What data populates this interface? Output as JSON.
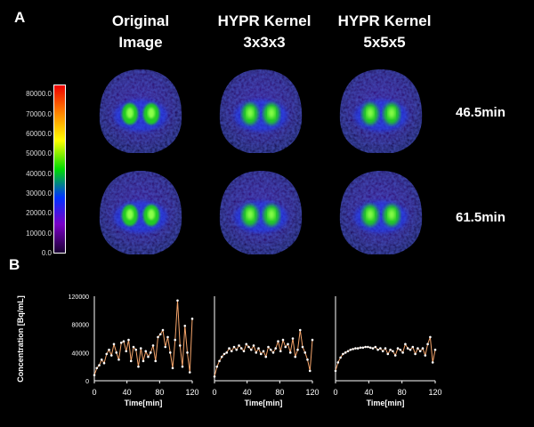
{
  "panel_labels": {
    "a": "A",
    "b": "B"
  },
  "columns": [
    {
      "line1": "Original",
      "line2": "Image"
    },
    {
      "line1": "HYPR Kernel",
      "line2": "3x3x3"
    },
    {
      "line1": "HYPR Kernel",
      "line2": "5x5x5"
    }
  ],
  "rows": [
    "46.5min",
    "61.5min"
  ],
  "colorbar": {
    "ticks": [
      "80000.0",
      "70000.0",
      "60000.0",
      "50000.0",
      "40000.0",
      "30000.0",
      "20000.0",
      "10000.0",
      "0.0"
    ],
    "max": 85000,
    "colors": [
      "#f00000",
      "#ff8800",
      "#ffff00",
      "#00dd00",
      "#0033ff",
      "#7a00c8",
      "#1a0033"
    ]
  },
  "chart_data": [
    {
      "type": "line",
      "ylabel": "Concentration [Bq/mL]",
      "xlabel": "Time[min]",
      "xticks": [
        "0",
        "40",
        "80",
        "120"
      ],
      "yticks": [
        "0",
        "40000",
        "80000",
        "120000"
      ],
      "xlim": [
        0,
        120
      ],
      "ylim": [
        0,
        120000
      ],
      "x": [
        0,
        3,
        6,
        9,
        12,
        15,
        18,
        21,
        24,
        27,
        30,
        33,
        36,
        39,
        42,
        45,
        48,
        51,
        54,
        57,
        60,
        63,
        66,
        69,
        72,
        75,
        78,
        81,
        84,
        87,
        90,
        93,
        96,
        99,
        102,
        105,
        108,
        111,
        114,
        117,
        120
      ],
      "values": [
        8000,
        18000,
        22000,
        30000,
        25000,
        38000,
        44000,
        36000,
        52000,
        40000,
        30000,
        54000,
        56000,
        42000,
        58000,
        28000,
        48000,
        44000,
        20000,
        46000,
        28000,
        42000,
        34000,
        40000,
        50000,
        28000,
        62000,
        66000,
        72000,
        48000,
        62000,
        40000,
        18000,
        58000,
        114000,
        50000,
        20000,
        78000,
        40000,
        12000,
        88000
      ],
      "color": "#f5a46a"
    },
    {
      "type": "line",
      "xlabel": "Time[min]",
      "xticks": [
        "0",
        "40",
        "80",
        "120"
      ],
      "xlim": [
        0,
        120
      ],
      "ylim": [
        0,
        120000
      ],
      "x": [
        0,
        3,
        6,
        9,
        12,
        15,
        18,
        21,
        24,
        27,
        30,
        33,
        36,
        39,
        42,
        45,
        48,
        51,
        54,
        57,
        60,
        63,
        66,
        69,
        72,
        75,
        78,
        81,
        84,
        87,
        90,
        93,
        96,
        99,
        102,
        105,
        108,
        111,
        114,
        117,
        120
      ],
      "values": [
        6000,
        20000,
        28000,
        34000,
        38000,
        40000,
        46000,
        42000,
        48000,
        44000,
        50000,
        46000,
        42000,
        52000,
        48000,
        44000,
        50000,
        40000,
        46000,
        38000,
        42000,
        34000,
        48000,
        44000,
        40000,
        46000,
        56000,
        42000,
        58000,
        48000,
        52000,
        40000,
        60000,
        34000,
        44000,
        72000,
        48000,
        40000,
        30000,
        14000,
        58000
      ],
      "color": "#f5a46a"
    },
    {
      "type": "line",
      "xlabel": "Time[min]",
      "xticks": [
        "0",
        "40",
        "80",
        "120"
      ],
      "xlim": [
        0,
        120
      ],
      "ylim": [
        0,
        120000
      ],
      "x": [
        0,
        3,
        6,
        9,
        12,
        15,
        18,
        21,
        24,
        27,
        30,
        33,
        36,
        39,
        42,
        45,
        48,
        51,
        54,
        57,
        60,
        63,
        66,
        69,
        72,
        75,
        78,
        81,
        84,
        87,
        90,
        93,
        96,
        99,
        102,
        105,
        108,
        111,
        114,
        117,
        120
      ],
      "values": [
        14000,
        26000,
        33000,
        38000,
        40000,
        42000,
        44000,
        45000,
        46000,
        46000,
        47000,
        47000,
        48000,
        48000,
        47000,
        46000,
        48000,
        44000,
        46000,
        42000,
        46000,
        38000,
        44000,
        42000,
        36000,
        46000,
        44000,
        40000,
        52000,
        46000,
        44000,
        48000,
        38000,
        46000,
        42000,
        46000,
        36000,
        52000,
        62000,
        26000,
        44000
      ],
      "color": "#f5a46a"
    }
  ]
}
